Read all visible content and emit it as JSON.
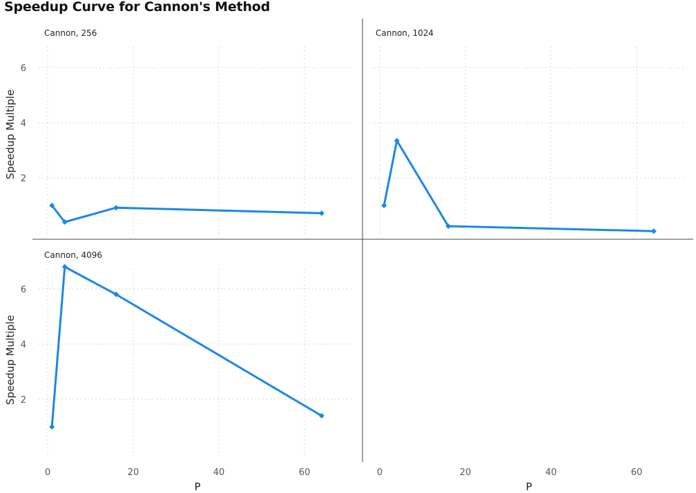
{
  "title": "Speedup Curve for Cannon's Method",
  "colors": {
    "series": "#1a86e8",
    "grid": "#c8c8c8",
    "divider": "#444444"
  },
  "chart_data": {
    "type": "line",
    "facet": "small-multiples",
    "title": "Speedup Curve for Cannon's Method",
    "xlabel": "P",
    "ylabel": "Speedup Multiple",
    "xlim": [
      -2,
      70
    ],
    "ylim": [
      -0.2,
      7
    ],
    "xticks": [
      0,
      20,
      40,
      60
    ],
    "yticks": [
      2,
      4,
      6
    ],
    "grid": true,
    "panels": [
      {
        "name": "Cannon, 256",
        "x": [
          1,
          4,
          16,
          64
        ],
        "y": [
          1.0,
          0.4,
          0.92,
          0.72
        ]
      },
      {
        "name": "Cannon, 1024",
        "x": [
          1,
          4,
          16,
          64
        ],
        "y": [
          1.0,
          3.35,
          0.25,
          0.07
        ]
      },
      {
        "name": "Cannon, 4096",
        "x": [
          1,
          4,
          16,
          64
        ],
        "y": [
          1.0,
          6.8,
          5.8,
          1.4
        ]
      }
    ]
  }
}
